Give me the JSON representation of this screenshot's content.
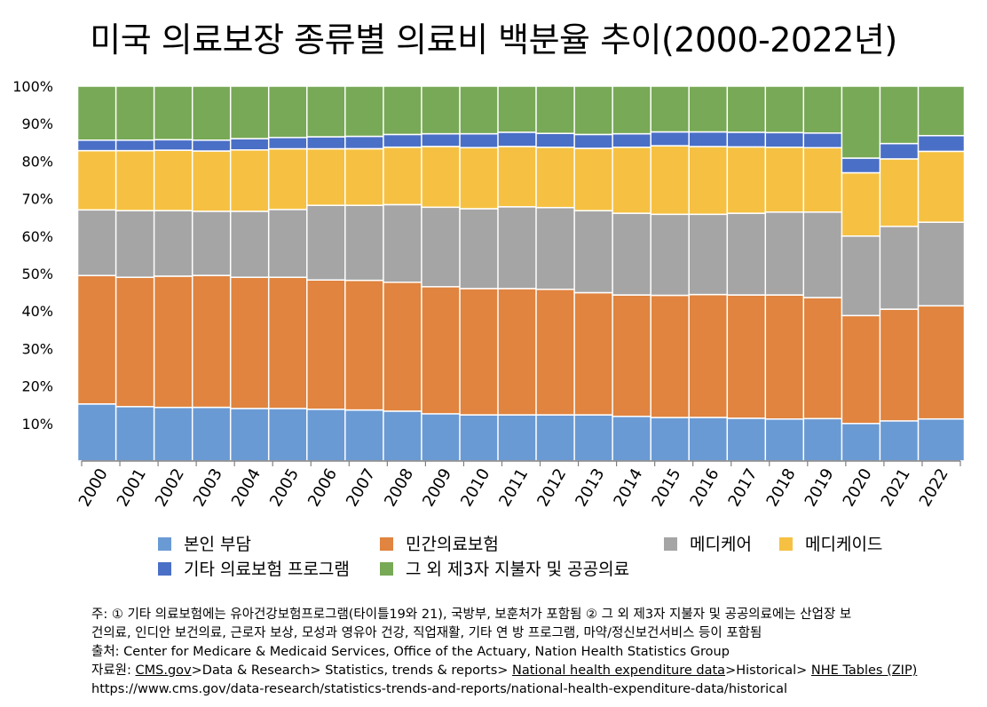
{
  "title": "미국 의료보장 종류별 의료비 백분율 추이(2000-2022년)",
  "colors": {
    "self_pay": "#6a9ad4",
    "private": "#e0843f",
    "medicare": "#a5a5a5",
    "medicaid": "#f6c142",
    "other_ins": "#4a6fc6",
    "third_party": "#78a956"
  },
  "legend": [
    {
      "name": "본인 부담",
      "color": "#6a9ad4"
    },
    {
      "name": "민간의료보험",
      "color": "#e0843f"
    },
    {
      "name": "메디케어",
      "color": "#a5a5a5"
    },
    {
      "name": "메디케이드",
      "color": "#f6c142"
    },
    {
      "name": "기타 의료보험 프로그램",
      "color": "#4a6fc6"
    },
    {
      "name": "그 외 제3자 지불자 및 공공의료",
      "color": "#78a956"
    }
  ],
  "chart_data": {
    "type": "bar",
    "stacked": true,
    "title": "미국 의료보장 종류별 의료비 백분율 추이(2000-2022년)",
    "categories": [
      "2000",
      "2001",
      "2002",
      "2003",
      "2004",
      "2005",
      "2006",
      "2007",
      "2008",
      "2009",
      "2010",
      "2011",
      "2012",
      "2013",
      "2014",
      "2015",
      "2016",
      "2017",
      "2018",
      "2019",
      "2020",
      "2021",
      "2022"
    ],
    "y_ticks": [
      "10%",
      "20%",
      "30%",
      "40%",
      "50%",
      "60%",
      "70%",
      "80%",
      "90%",
      "100%"
    ],
    "ylim": [
      0,
      100
    ],
    "grid": false,
    "legend_position": "bottom",
    "series": [
      {
        "name": "본인 부담",
        "color": "#6a9ad4",
        "values": [
          15.2,
          14.5,
          14.3,
          14.3,
          14.0,
          14.0,
          13.8,
          13.6,
          13.3,
          12.6,
          12.3,
          12.3,
          12.3,
          12.3,
          11.9,
          11.6,
          11.6,
          11.4,
          11.2,
          11.3,
          10.0,
          10.7,
          11.2
        ]
      },
      {
        "name": "민간의료보험",
        "color": "#e0843f",
        "values": [
          34.3,
          34.5,
          35.0,
          35.2,
          35.0,
          35.0,
          34.5,
          34.6,
          34.4,
          33.9,
          33.7,
          33.7,
          33.5,
          32.6,
          32.4,
          32.6,
          32.8,
          32.9,
          33.1,
          32.3,
          28.8,
          29.8,
          30.2
        ]
      },
      {
        "name": "메디케어",
        "color": "#a5a5a5",
        "values": [
          17.5,
          17.8,
          17.5,
          17.1,
          17.6,
          18.1,
          19.9,
          20.0,
          20.7,
          21.2,
          21.3,
          21.8,
          21.8,
          21.9,
          21.8,
          21.6,
          21.4,
          21.8,
          22.1,
          22.8,
          21.2,
          22.1,
          22.3
        ]
      },
      {
        "name": "메디케이드",
        "color": "#f6c142",
        "values": [
          15.8,
          16.0,
          16.1,
          16.1,
          16.4,
          16.2,
          15.1,
          15.1,
          15.3,
          16.2,
          16.3,
          16.1,
          16.1,
          16.6,
          17.6,
          18.3,
          18.1,
          17.7,
          17.3,
          17.2,
          16.9,
          18.0,
          18.9
        ]
      },
      {
        "name": "기타 의료보험 프로그램",
        "color": "#4a6fc6",
        "values": [
          2.8,
          2.8,
          2.8,
          2.9,
          3.0,
          3.0,
          3.2,
          3.3,
          3.4,
          3.4,
          3.7,
          3.8,
          3.7,
          3.7,
          3.6,
          3.7,
          3.9,
          3.9,
          3.9,
          3.9,
          3.9,
          4.1,
          4.2
        ]
      },
      {
        "name": "그 외 제3자 지불자 및 공공의료",
        "color": "#78a956",
        "values": [
          14.4,
          14.4,
          14.3,
          14.4,
          14.0,
          13.7,
          13.5,
          13.4,
          12.9,
          12.7,
          12.7,
          12.3,
          12.6,
          12.9,
          12.7,
          12.2,
          12.2,
          12.3,
          12.4,
          12.5,
          19.2,
          15.3,
          13.2
        ]
      }
    ]
  },
  "notes": {
    "line1": "주: ① 기타 의료보험에는 유아건강보험프로그램(타이틀19와 21), 국방부, 보훈처가 포함됨  ② 그 외 제3자 지불자 및 공공의료에는 산업장 보",
    "line2": "건의료, 인디안 보건의료, 근로자 보상, 모성과 영유아 건강, 직업재활, 기타 연  방 프로그램, 마약/정신보건서비스 등이 포함됨",
    "line3": "출처: Center for Medicare & Medicaid Services, Office of the Actuary, Nation Health Statistics Group",
    "line4_prefix": "자료원: ",
    "line4_link1": "CMS.gov",
    "line4_mid1": ">Data & Research> Statistics, trends & reports> ",
    "line4_link2": "National health expenditure data",
    "line4_mid2": ">Historical> ",
    "line4_link3": "NHE Tables (ZIP)",
    "line5": "https://www.cms.gov/data-research/statistics-trends-and-reports/national-health-expenditure-data/historical"
  }
}
